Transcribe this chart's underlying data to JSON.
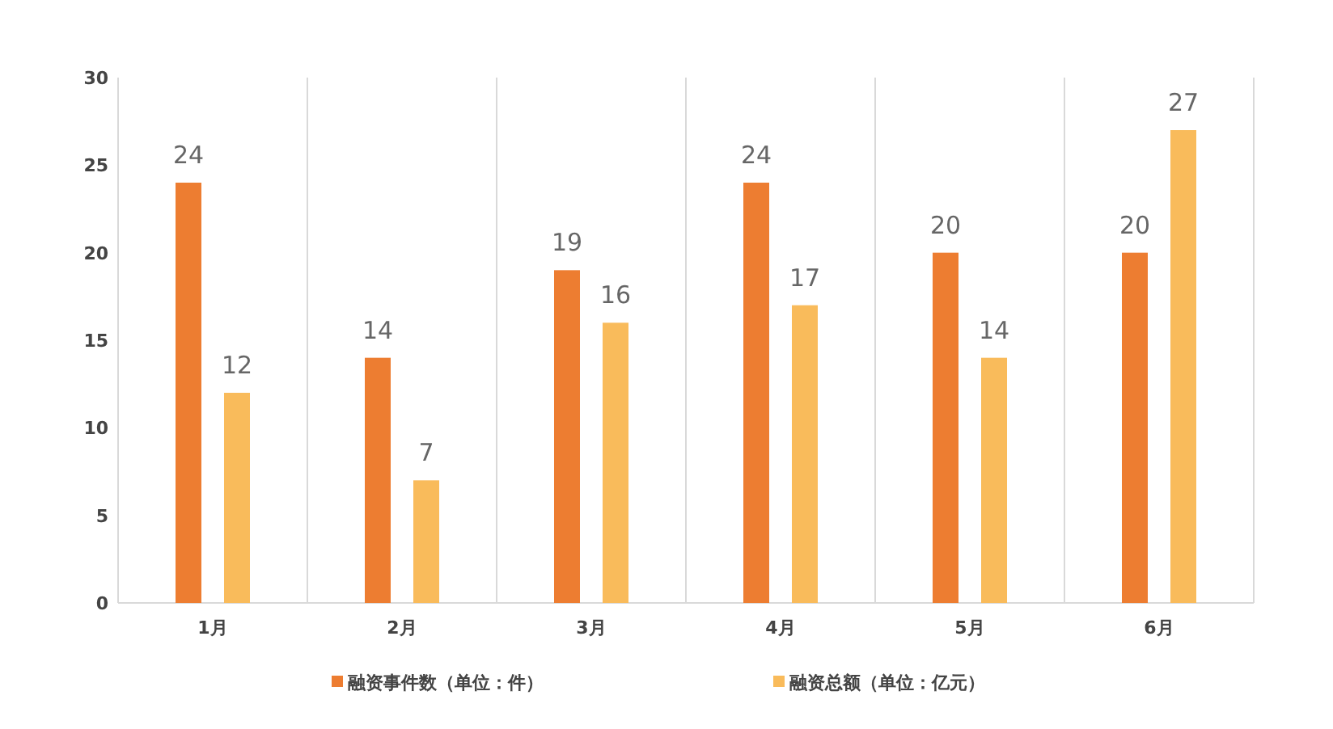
{
  "chart_data": {
    "type": "bar",
    "categories": [
      "1月",
      "2月",
      "3月",
      "4月",
      "5月",
      "6月"
    ],
    "series": [
      {
        "name": "融资事件数（单位：件）",
        "color": "#ed7d31",
        "values": [
          24,
          14,
          19,
          24,
          20,
          20
        ]
      },
      {
        "name": "融资总额（单位：亿元）",
        "color": "#f9bb5b",
        "values": [
          12,
          7,
          16,
          17,
          14,
          27
        ]
      }
    ],
    "ylim": [
      0,
      30
    ],
    "yticks": [
      0,
      5,
      10,
      15,
      20,
      25,
      30
    ],
    "data_labels": true,
    "grid": "x",
    "legend": "bottom"
  }
}
